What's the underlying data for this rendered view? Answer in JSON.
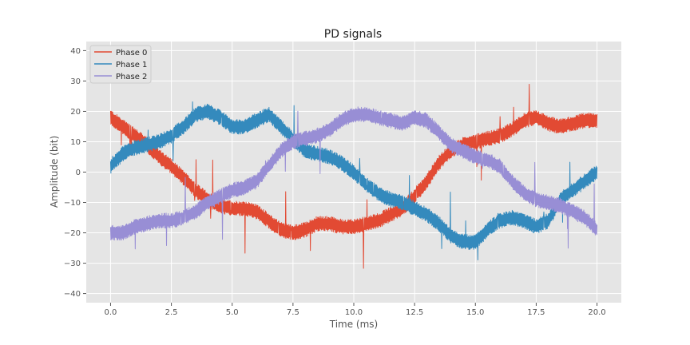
{
  "chart_data": {
    "type": "line",
    "title": "PD signals",
    "xlabel": "Time (ms)",
    "ylabel": "Amplitude (bit)",
    "xlim": [
      -1.0,
      21.0
    ],
    "ylim": [
      -43,
      43
    ],
    "xticks": [
      0.0,
      2.5,
      5.0,
      7.5,
      10.0,
      12.5,
      15.0,
      17.5,
      20.0
    ],
    "xtick_labels": [
      "0.0",
      "2.5",
      "5.0",
      "7.5",
      "10.0",
      "12.5",
      "15.0",
      "17.5",
      "20.0"
    ],
    "yticks": [
      -40,
      -30,
      -20,
      -10,
      0,
      10,
      20,
      30,
      40
    ],
    "ytick_labels": [
      "−40",
      "−30",
      "−20",
      "−10",
      "0",
      "10",
      "20",
      "30",
      "40"
    ],
    "grid": true,
    "legend_position": "top-left",
    "background": "#e5e5e5",
    "series": [
      {
        "name": "Phase 0",
        "color": "#e24a33",
        "x": [
          0,
          0.5,
          1,
          1.5,
          2,
          2.5,
          3,
          3.5,
          4,
          4.5,
          5,
          5.5,
          6,
          6.5,
          7,
          7.5,
          8,
          8.5,
          9,
          9.5,
          10,
          10.5,
          11,
          11.5,
          12,
          12.5,
          13,
          13.5,
          14,
          14.5,
          15,
          15.5,
          16,
          16.5,
          17,
          17.5,
          18,
          18.5,
          19,
          19.5,
          20
        ],
        "values": [
          18,
          15,
          12,
          9,
          5,
          2,
          -2,
          -6,
          -9,
          -11,
          -12,
          -12,
          -13,
          -16,
          -19,
          -20,
          -19,
          -17,
          -17,
          -18,
          -18,
          -17,
          -16,
          -14,
          -12,
          -8,
          -3,
          3,
          7,
          9,
          10,
          11,
          12,
          14,
          17,
          18,
          16,
          15,
          16,
          17,
          17
        ],
        "noise": 2.5
      },
      {
        "name": "Phase 1",
        "color": "#348abd",
        "x": [
          0,
          0.5,
          1,
          1.5,
          2,
          2.5,
          3,
          3.5,
          4,
          4.5,
          5,
          5.5,
          6,
          6.5,
          7,
          7.5,
          8,
          8.5,
          9,
          9.5,
          10,
          10.5,
          11,
          11.5,
          12,
          12.5,
          13,
          13.5,
          14,
          14.5,
          15,
          15.5,
          16,
          16.5,
          17,
          17.5,
          18,
          18.5,
          19,
          19.5,
          20
        ],
        "values": [
          2,
          6,
          8,
          9,
          10,
          12,
          15,
          19,
          20,
          18,
          15,
          15,
          17,
          19,
          15,
          11,
          7,
          6,
          5,
          3,
          0,
          -4,
          -7,
          -9,
          -10,
          -12,
          -14,
          -17,
          -21,
          -23,
          -23,
          -19,
          -16,
          -15,
          -16,
          -18,
          -16,
          -9,
          -6,
          -3,
          0
        ],
        "noise": 2.5
      },
      {
        "name": "Phase 2",
        "color": "#988ed5",
        "x": [
          0,
          0.5,
          1,
          1.5,
          2,
          2.5,
          3,
          3.5,
          4,
          4.5,
          5,
          5.5,
          6,
          6.5,
          7,
          7.5,
          8,
          8.5,
          9,
          9.5,
          10,
          10.5,
          11,
          11.5,
          12,
          12.5,
          13,
          13.5,
          14,
          14.5,
          15,
          15.5,
          16,
          16.5,
          17,
          17.5,
          18,
          18.5,
          19,
          19.5,
          20
        ],
        "values": [
          -20,
          -20,
          -18,
          -17,
          -16,
          -16,
          -15,
          -13,
          -10,
          -8,
          -6,
          -5,
          -3,
          2,
          7,
          10,
          11,
          12,
          14,
          17,
          19,
          19,
          18,
          17,
          16,
          18,
          17,
          13,
          9,
          7,
          5,
          4,
          2,
          -3,
          -7,
          -9,
          -10,
          -11,
          -13,
          -15,
          -19
        ],
        "noise": 2.5
      }
    ]
  }
}
